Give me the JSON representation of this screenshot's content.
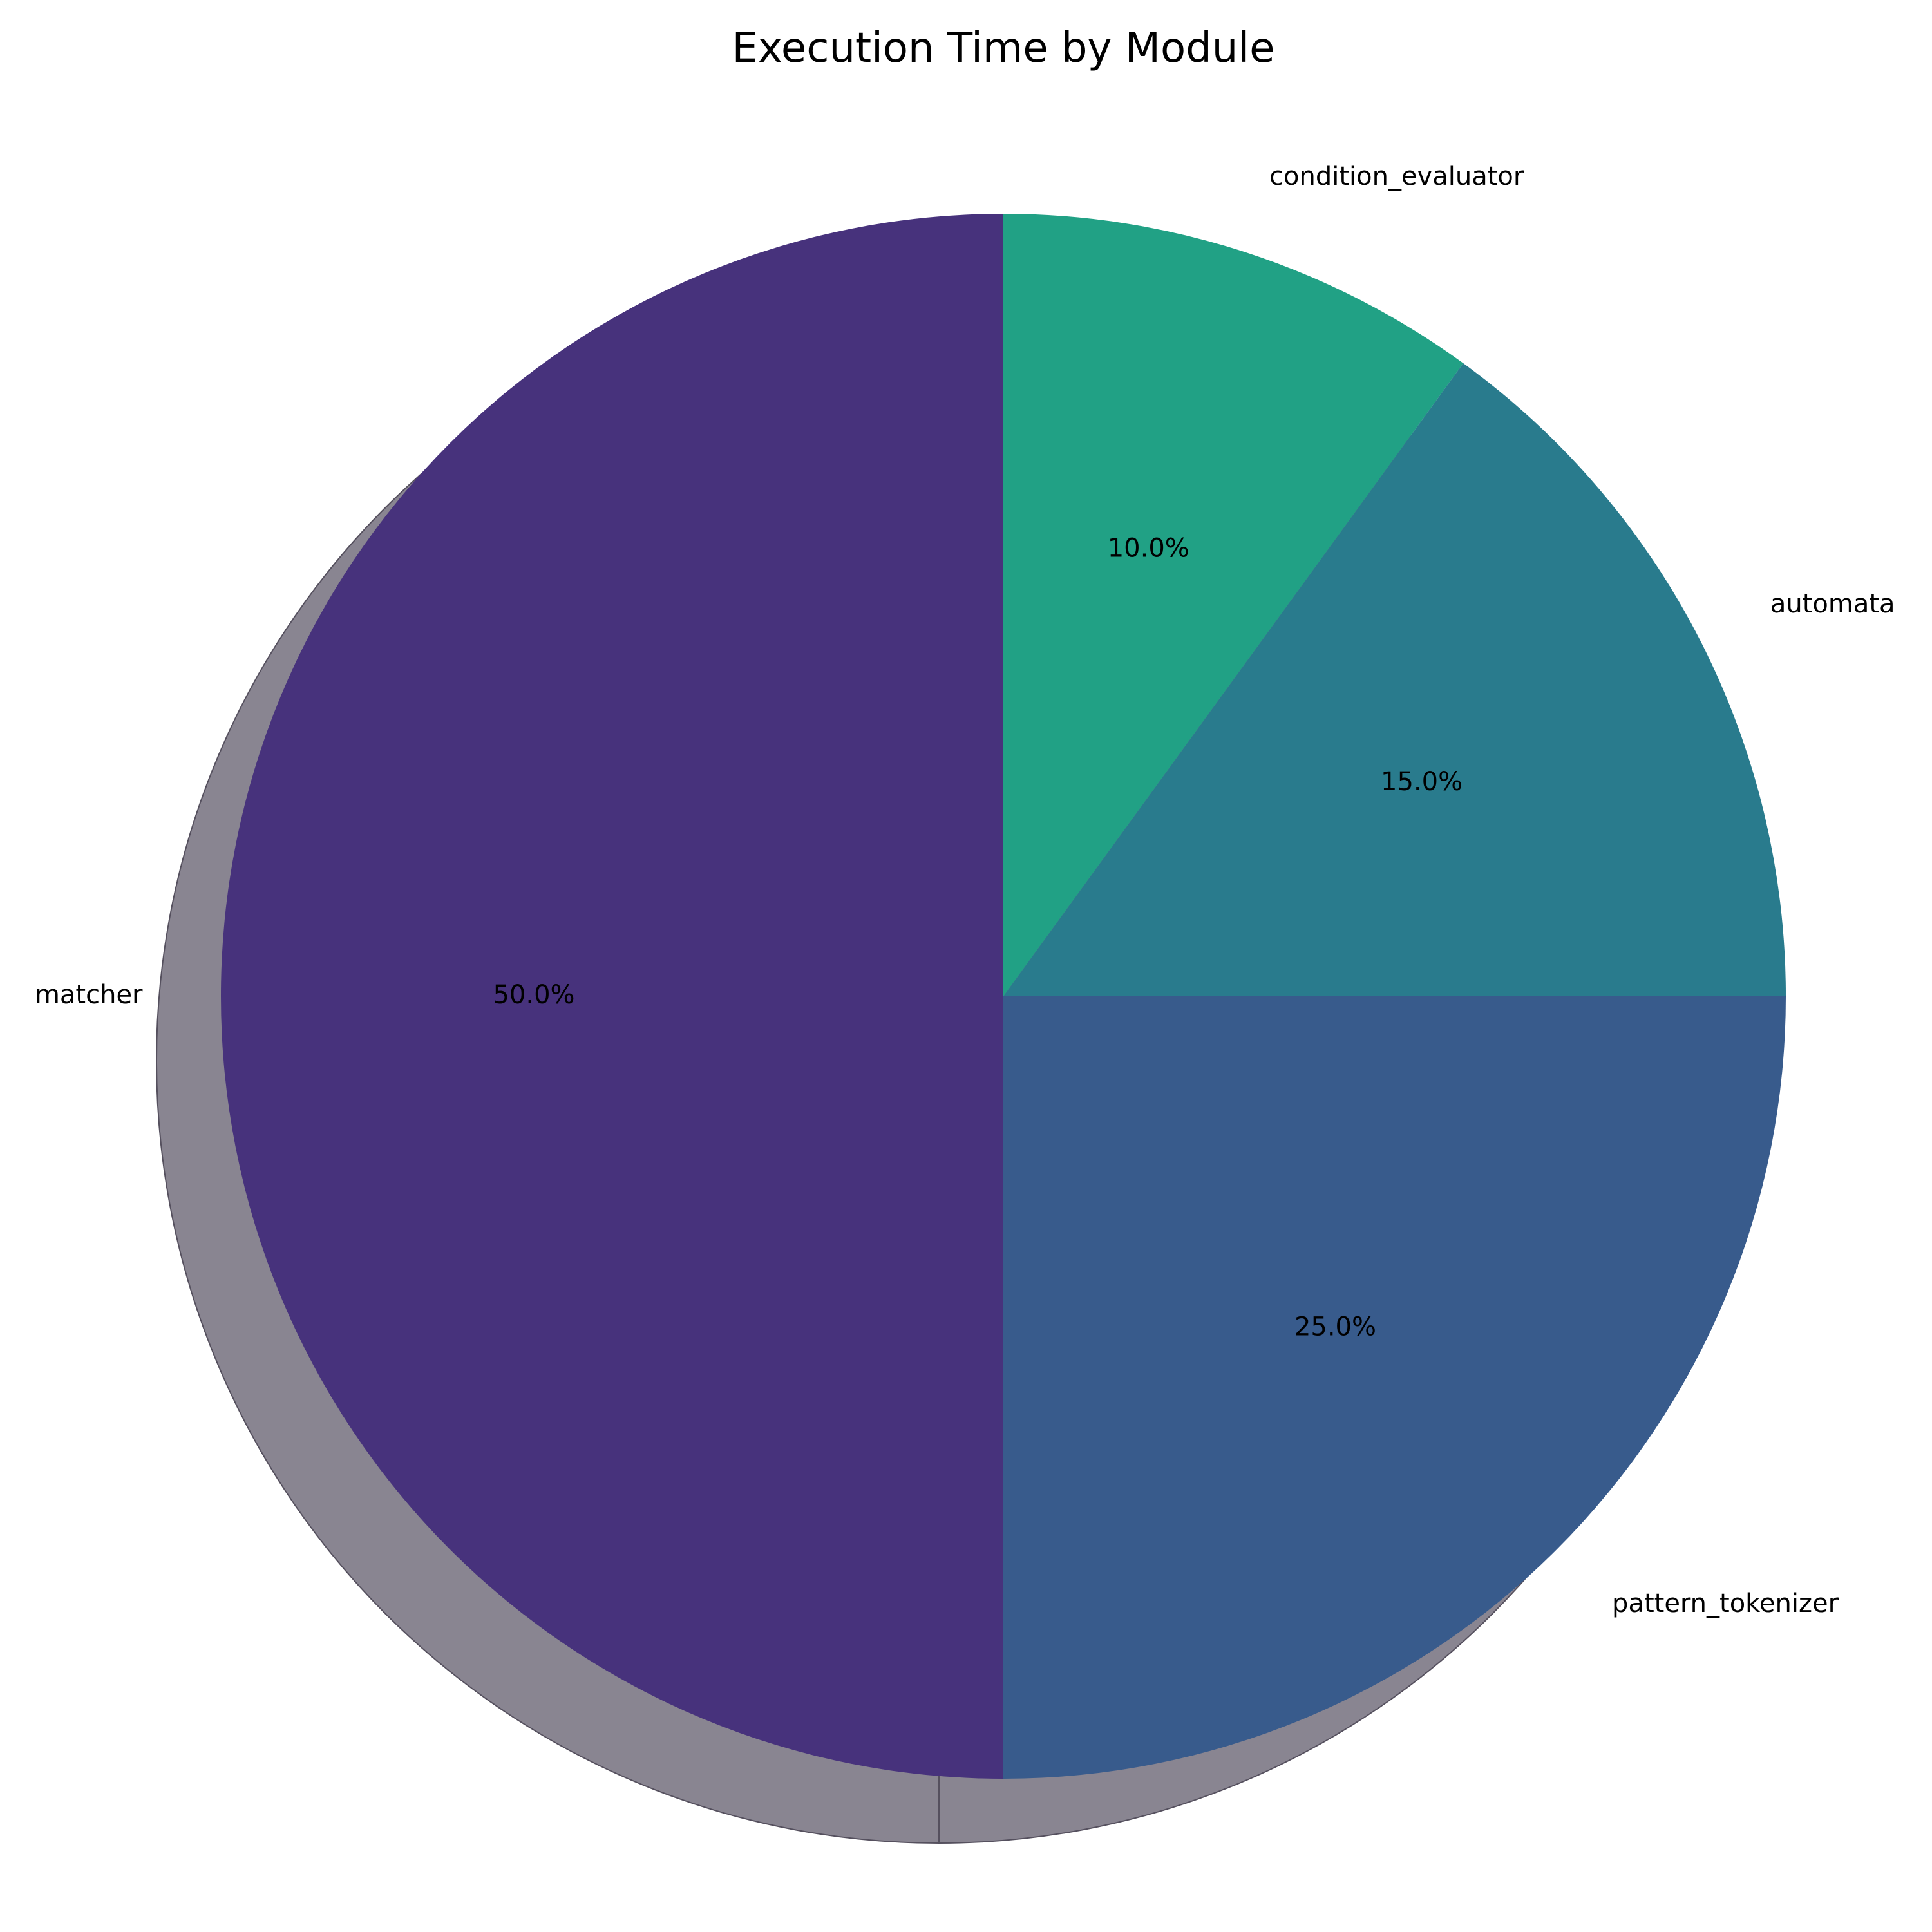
{
  "chart_data": {
    "type": "pie",
    "title": "Execution Time by Module",
    "slices": [
      {
        "label": "condition_evaluator",
        "value": 10.0,
        "pct_label": "10.0%",
        "color": "#21a185"
      },
      {
        "label": "automata",
        "value": 15.0,
        "pct_label": "15.0%",
        "color": "#297b8d"
      },
      {
        "label": "pattern_tokenizer",
        "value": 25.0,
        "pct_label": "25.0%",
        "color": "#385b8c"
      },
      {
        "label": "matcher",
        "value": 50.0,
        "pct_label": "50.0%",
        "color": "#47327c"
      }
    ],
    "start_angle_deg": 90,
    "direction": "clockwise",
    "shadow": true,
    "shadow_color": "#898591",
    "legend": false
  }
}
